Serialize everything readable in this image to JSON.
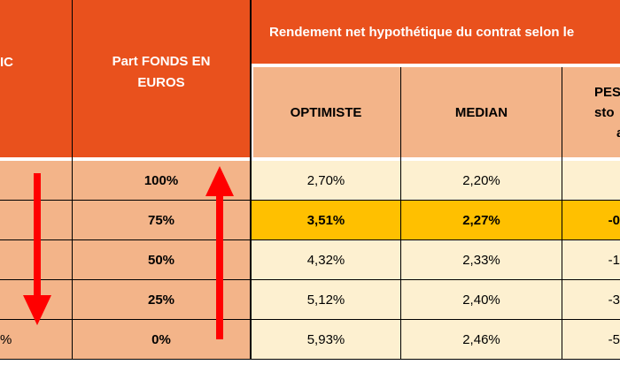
{
  "header": {
    "col1_label_fragment": "IC",
    "col2_label_line1": "Part FONDS EN",
    "col2_label_line2": "EUROS",
    "group_label": "Rendement net hypothétique du contrat selon le",
    "sub_optimiste": "OPTIMISTE",
    "sub_median": "MEDIAN",
    "sub_pess_line1": "PES",
    "sub_pess_line2": "sto",
    "sub_pess_line3": "a"
  },
  "rows": [
    {
      "left": "",
      "part": "100%",
      "optimiste": "2,70%",
      "median": "2,20%",
      "pess": ""
    },
    {
      "left": "",
      "part": "75%",
      "optimiste": "3,51%",
      "median": "2,27%",
      "pess": "-0"
    },
    {
      "left": "",
      "part": "50%",
      "optimiste": "4,32%",
      "median": "2,33%",
      "pess": "-1"
    },
    {
      "left": "",
      "part": "25%",
      "optimiste": "5,12%",
      "median": "2,40%",
      "pess": "-3"
    },
    {
      "left": "%",
      "part": "0%",
      "optimiste": "5,93%",
      "median": "2,46%",
      "pess": "-5"
    }
  ],
  "colors": {
    "header_orange": "#E9511D",
    "salmon": "#F3B489",
    "cream": "#FDF0D0",
    "highlight_gold": "#FFC000",
    "arrow_red": "#FF0000"
  }
}
